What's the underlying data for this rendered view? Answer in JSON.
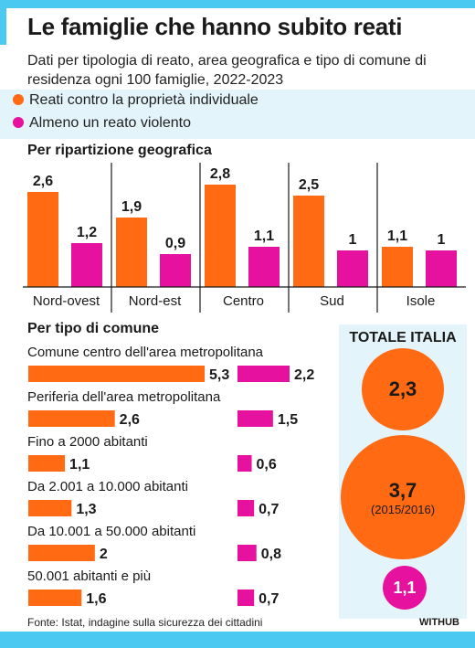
{
  "title": "Le famiglie che hanno subito reati",
  "subtitle": "Dati per tipologia di reato, area geografica e tipo di comune di residenza ogni 100 famiglie, 2022-2023",
  "legend": [
    {
      "label": "Reati contro la proprietà individuale",
      "color": "#ff6a13"
    },
    {
      "label": "Almeno un reato violento",
      "color": "#e6119f"
    }
  ],
  "colors": {
    "property": "#ff6a13",
    "violent": "#e6119f",
    "accent": "#4cc9f0",
    "panel": "#e3f4fb"
  },
  "sections": {
    "geo_title": "Per ripartizione geografica",
    "comune_title": "Per tipo di comune"
  },
  "chart_data": [
    {
      "type": "bar",
      "categories": [
        "Nord-ovest",
        "Nord-est",
        "Centro",
        "Sud",
        "Isole"
      ],
      "series": [
        {
          "name": "Reati contro la proprietà individuale",
          "values": [
            2.6,
            1.9,
            2.8,
            2.5,
            1.1
          ],
          "labels": [
            "2,6",
            "1,9",
            "2,8",
            "2,5",
            "1,1"
          ]
        },
        {
          "name": "Almeno un reato violento",
          "values": [
            1.2,
            0.9,
            1.1,
            1,
            1
          ],
          "labels": [
            "1,2",
            "0,9",
            "1,1",
            "1",
            "1"
          ]
        }
      ],
      "title": "Per ripartizione geografica",
      "ylim": [
        0,
        2.8
      ]
    },
    {
      "type": "bar",
      "orientation": "horizontal",
      "categories": [
        "Comune centro dell'area metropolitana",
        "Periferia dell'area metropolitana",
        "Fino a 2000 abitanti",
        "Da 2.001 a 10.000 abitanti",
        "Da 10.001 a 50.000 abitanti",
        "50.001 abitanti e più"
      ],
      "series": [
        {
          "name": "Reati contro la proprietà individuale",
          "values": [
            5.3,
            2.6,
            1.1,
            1.3,
            2,
            1.6
          ],
          "labels": [
            "5,3",
            "2,6",
            "1,1",
            "1,3",
            "2",
            "1,6"
          ]
        },
        {
          "name": "Almeno un reato violento",
          "values": [
            2.2,
            1.5,
            0.6,
            0.7,
            0.8,
            0.7
          ],
          "labels": [
            "2,2",
            "1,5",
            "0,6",
            "0,7",
            "0,8",
            "0,7"
          ]
        }
      ],
      "title": "Per tipo di comune"
    }
  ],
  "totale": {
    "title": "TOTALE ITALIA",
    "property": "2,3",
    "reference": "3,7",
    "reference_note": "(2015/2016)",
    "violent": "1,1"
  },
  "source": "Fonte: Istat, indagine sulla sicurezza dei cittadini",
  "brand": "WITHUB"
}
